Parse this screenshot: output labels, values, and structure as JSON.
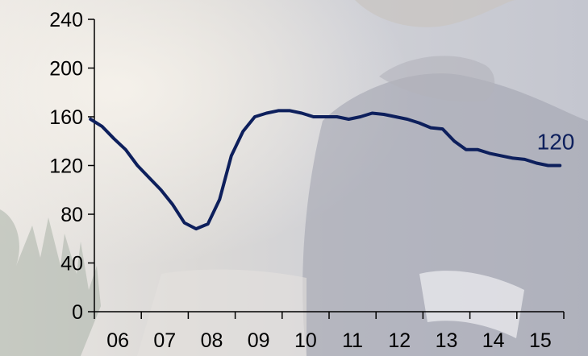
{
  "chart_data": {
    "type": "line",
    "x": [
      "2005-12",
      "2006-03",
      "2006-06",
      "2006-09",
      "2006-12",
      "2007-03",
      "2007-06",
      "2007-09",
      "2007-12",
      "2008-03",
      "2008-06",
      "2008-09",
      "2008-12",
      "2009-03",
      "2009-06",
      "2009-09",
      "2009-12",
      "2010-03",
      "2010-06",
      "2010-09",
      "2010-12",
      "2011-03",
      "2011-06",
      "2011-09",
      "2011-12",
      "2012-03",
      "2012-06",
      "2012-09",
      "2012-12",
      "2013-03",
      "2013-06",
      "2013-09",
      "2013-12",
      "2014-03",
      "2014-06",
      "2014-09",
      "2014-12",
      "2015-03",
      "2015-06",
      "2015-09",
      "2015-12"
    ],
    "series": [
      {
        "values": [
          158,
          152,
          142,
          133,
          120,
          110,
          100,
          88,
          73,
          68,
          72,
          92,
          128,
          148,
          160,
          163,
          165,
          165,
          163,
          160,
          160,
          160,
          158,
          160,
          163,
          162,
          160,
          158,
          155,
          151,
          150,
          140,
          133,
          133,
          130,
          128,
          126,
          125,
          122,
          120,
          120
        ],
        "color": "#0d1f5c"
      }
    ],
    "x_ticks": [
      "06",
      "07",
      "08",
      "09",
      "10",
      "11",
      "12",
      "13",
      "14",
      "15"
    ],
    "y_ticks": [
      "0",
      "40",
      "80",
      "120",
      "160",
      "200",
      "240"
    ],
    "ylim": [
      0,
      240
    ],
    "end_label": "120",
    "grid": false,
    "legend": "none"
  }
}
